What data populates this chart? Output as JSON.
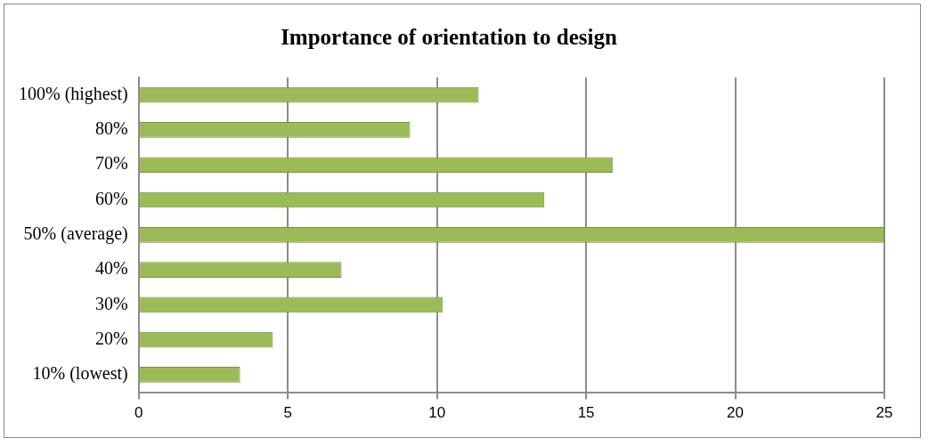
{
  "chart_data": {
    "type": "bar",
    "orientation": "horizontal",
    "title": "Importance of orientation to design",
    "categories": [
      "100% (highest)",
      "80%",
      "70%",
      "60%",
      "50% (average)",
      "40%",
      "30%",
      "20%",
      "10% (lowest)"
    ],
    "values": [
      11.4,
      9.1,
      15.9,
      13.6,
      25,
      6.8,
      10.2,
      4.5,
      3.4
    ],
    "color": "#9bbb59",
    "xlim": [
      0,
      25
    ],
    "xticks": [
      0,
      5,
      10,
      15,
      20,
      25
    ],
    "grid": "x",
    "legend": false
  }
}
